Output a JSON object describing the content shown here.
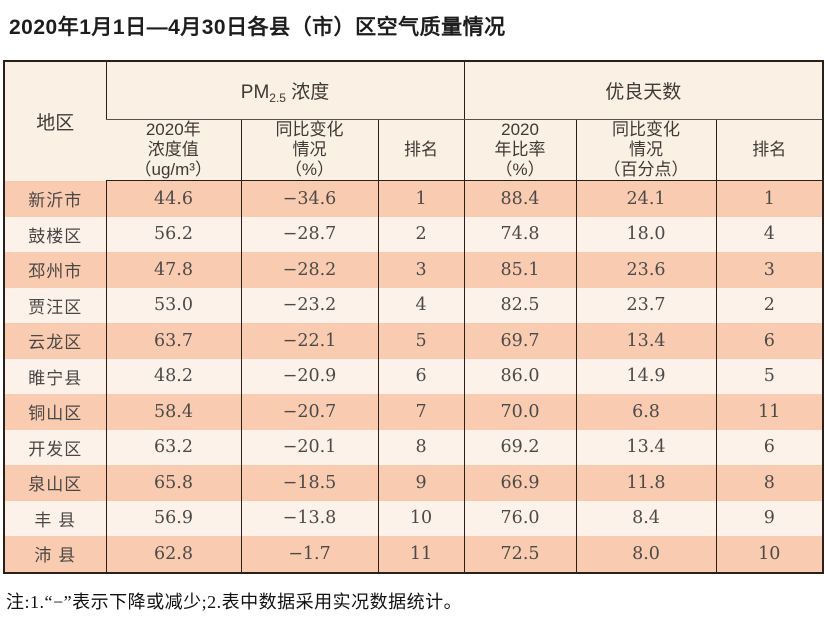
{
  "title": "2020年1月1日—4月30日各县（市）区空气质量情况",
  "table": {
    "region_header": "地区",
    "groups": {
      "pm25_prefix": "PM",
      "pm25_subscript": "2.5",
      "pm25_suffix": " 浓度",
      "good_days": "优良天数"
    },
    "subheaders": {
      "pm_value": "2020年\n浓度值\n（ug/m³）",
      "pm_change": "同比变化\n情况\n（%）",
      "pm_rank": "排名",
      "gd_rate": "2020\n年比率\n（%）",
      "gd_change": "同比变化\n情况\n（百分点）",
      "gd_rank": "排名"
    },
    "rows": [
      {
        "region": "新沂市",
        "pm_value": "44.6",
        "pm_change": "−34.6",
        "pm_rank": "1",
        "gd_rate": "88.4",
        "gd_change": "24.1",
        "gd_rank": "1"
      },
      {
        "region": "鼓楼区",
        "pm_value": "56.2",
        "pm_change": "−28.7",
        "pm_rank": "2",
        "gd_rate": "74.8",
        "gd_change": "18.0",
        "gd_rank": "4"
      },
      {
        "region": "邳州市",
        "pm_value": "47.8",
        "pm_change": "−28.2",
        "pm_rank": "3",
        "gd_rate": "85.1",
        "gd_change": "23.6",
        "gd_rank": "3"
      },
      {
        "region": "贾汪区",
        "pm_value": "53.0",
        "pm_change": "−23.2",
        "pm_rank": "4",
        "gd_rate": "82.5",
        "gd_change": "23.7",
        "gd_rank": "2"
      },
      {
        "region": "云龙区",
        "pm_value": "63.7",
        "pm_change": "−22.1",
        "pm_rank": "5",
        "gd_rate": "69.7",
        "gd_change": "13.4",
        "gd_rank": "6"
      },
      {
        "region": "睢宁县",
        "pm_value": "48.2",
        "pm_change": "−20.9",
        "pm_rank": "6",
        "gd_rate": "86.0",
        "gd_change": "14.9",
        "gd_rank": "5"
      },
      {
        "region": "铜山区",
        "pm_value": "58.4",
        "pm_change": "−20.7",
        "pm_rank": "7",
        "gd_rate": "70.0",
        "gd_change": "6.8",
        "gd_rank": "11"
      },
      {
        "region": "开发区",
        "pm_value": "63.2",
        "pm_change": "−20.1",
        "pm_rank": "8",
        "gd_rate": "69.2",
        "gd_change": "13.4",
        "gd_rank": "6"
      },
      {
        "region": "泉山区",
        "pm_value": "65.8",
        "pm_change": "−18.5",
        "pm_rank": "9",
        "gd_rate": "66.9",
        "gd_change": "11.8",
        "gd_rank": "8"
      },
      {
        "region": "丰 县",
        "pm_value": "56.9",
        "pm_change": "−13.8",
        "pm_rank": "10",
        "gd_rate": "76.0",
        "gd_change": "8.4",
        "gd_rank": "9"
      },
      {
        "region": "沛 县",
        "pm_value": "62.8",
        "pm_change": "−1.7",
        "pm_rank": "11",
        "gd_rate": "72.5",
        "gd_change": "8.0",
        "gd_rank": "10"
      }
    ]
  },
  "footnote": "注:1.“−”表示下降或减少;2.表中数据采用实况数据统计。",
  "colors": {
    "header_bg": "#faf0e3",
    "row_salmon": "#f9ccb2",
    "row_light": "#fdf2ea",
    "border": "#2a1f1a",
    "text": "#4c4a48"
  }
}
